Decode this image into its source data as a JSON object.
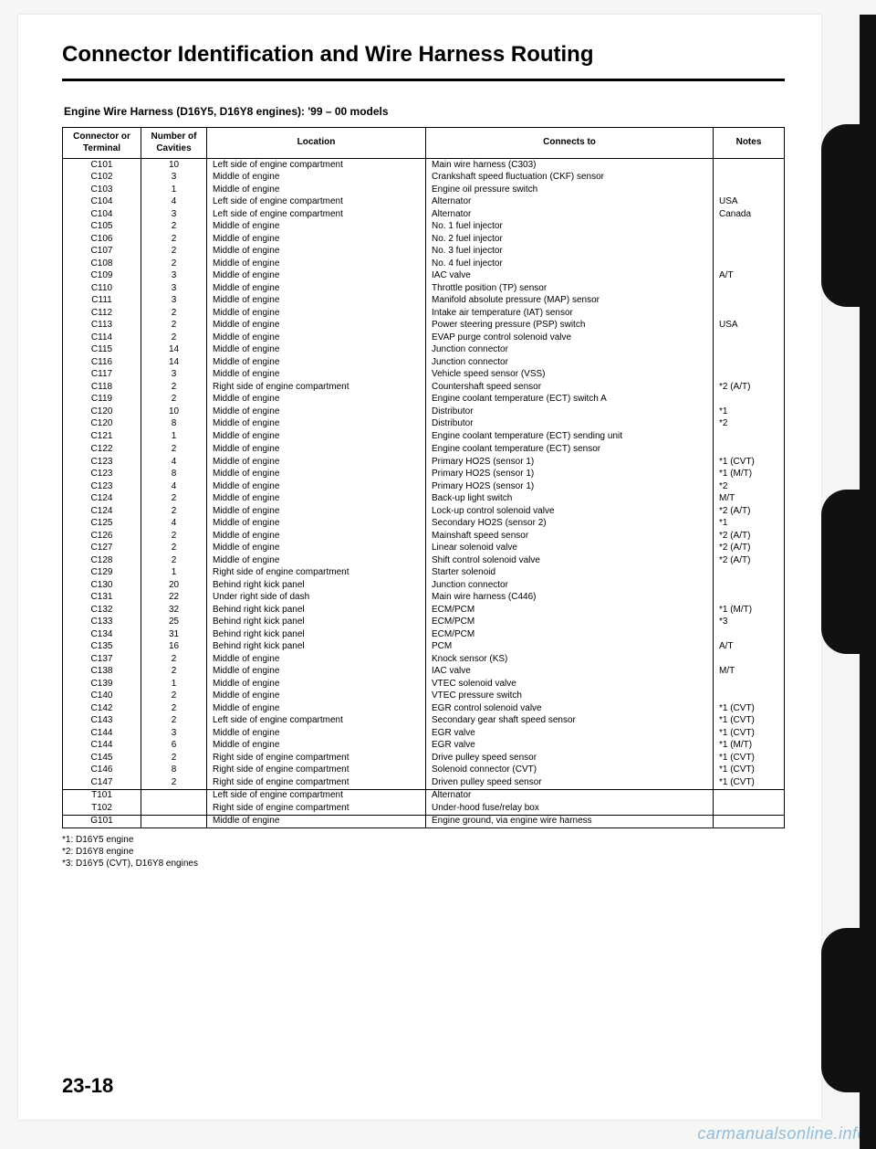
{
  "title": "Connector Identification and Wire Harness Routing",
  "subhead": "Engine Wire Harness (D16Y5, D16Y8 engines): '99 – 00 models",
  "headers": {
    "connector": "Connector or\nTerminal",
    "cavities": "Number of\nCavities",
    "location": "Location",
    "connects": "Connects to",
    "notes": "Notes"
  },
  "rows": [
    {
      "c": "C101",
      "n": "10",
      "loc": "Left side of engine compartment",
      "to": "Main wire harness (C303)",
      "note": ""
    },
    {
      "c": "C102",
      "n": "3",
      "loc": "Middle of engine",
      "to": "Crankshaft speed fluctuation (CKF) sensor",
      "note": ""
    },
    {
      "c": "C103",
      "n": "1",
      "loc": "Middle of engine",
      "to": "Engine oil pressure switch",
      "note": ""
    },
    {
      "c": "C104",
      "n": "4",
      "loc": "Left side of engine compartment",
      "to": "Alternator",
      "note": "USA"
    },
    {
      "c": "C104",
      "n": "3",
      "loc": "Left side of engine compartment",
      "to": "Alternator",
      "note": "Canada"
    },
    {
      "c": "C105",
      "n": "2",
      "loc": "Middle of engine",
      "to": "No. 1 fuel injector",
      "note": ""
    },
    {
      "c": "C106",
      "n": "2",
      "loc": "Middle of engine",
      "to": "No. 2 fuel injector",
      "note": ""
    },
    {
      "c": "C107",
      "n": "2",
      "loc": "Middle of engine",
      "to": "No. 3 fuel injector",
      "note": ""
    },
    {
      "c": "C108",
      "n": "2",
      "loc": "Middle of engine",
      "to": "No. 4 fuel injector",
      "note": ""
    },
    {
      "c": "C109",
      "n": "3",
      "loc": "Middle of engine",
      "to": "IAC valve",
      "note": "A/T"
    },
    {
      "c": "C110",
      "n": "3",
      "loc": "Middle of engine",
      "to": "Throttle position (TP) sensor",
      "note": ""
    },
    {
      "c": "C111",
      "n": "3",
      "loc": "Middle of engine",
      "to": "Manifold absolute pressure (MAP) sensor",
      "note": ""
    },
    {
      "c": "C112",
      "n": "2",
      "loc": "Middle of engine",
      "to": "Intake air temperature (IAT) sensor",
      "note": ""
    },
    {
      "c": "C113",
      "n": "2",
      "loc": "Middle of engine",
      "to": "Power steering pressure (PSP) switch",
      "note": "USA"
    },
    {
      "c": "C114",
      "n": "2",
      "loc": "Middle of engine",
      "to": "EVAP purge control solenoid valve",
      "note": ""
    },
    {
      "c": "C115",
      "n": "14",
      "loc": "Middle of engine",
      "to": "Junction connector",
      "note": ""
    },
    {
      "c": "C116",
      "n": "14",
      "loc": "Middle of engine",
      "to": "Junction connector",
      "note": ""
    },
    {
      "c": "C117",
      "n": "3",
      "loc": "Middle of engine",
      "to": "Vehicle speed sensor (VSS)",
      "note": ""
    },
    {
      "c": "C118",
      "n": "2",
      "loc": "Right side of engine compartment",
      "to": "Countershaft speed sensor",
      "note": "*2 (A/T)"
    },
    {
      "c": "C119",
      "n": "2",
      "loc": "Middle of engine",
      "to": "Engine coolant temperature (ECT) switch A",
      "note": ""
    },
    {
      "c": "C120",
      "n": "10",
      "loc": "Middle of engine",
      "to": "Distributor",
      "note": "*1"
    },
    {
      "c": "C120",
      "n": "8",
      "loc": "Middle of engine",
      "to": "Distributor",
      "note": "*2"
    },
    {
      "c": "C121",
      "n": "1",
      "loc": "Middle of engine",
      "to": "Engine coolant temperature (ECT) sending unit",
      "note": ""
    },
    {
      "c": "",
      "n": "",
      "loc": "",
      "to": "",
      "note": ""
    },
    {
      "c": "C122",
      "n": "2",
      "loc": "Middle of engine",
      "to": "Engine coolant temperature (ECT) sensor",
      "note": ""
    },
    {
      "c": "C123",
      "n": "4",
      "loc": "Middle of engine",
      "to": "Primary HO2S (sensor 1)",
      "note": "*1 (CVT)"
    },
    {
      "c": "C123",
      "n": "8",
      "loc": "Middle of engine",
      "to": "Primary HO2S (sensor 1)",
      "note": "*1 (M/T)"
    },
    {
      "c": "C123",
      "n": "4",
      "loc": "Middle of engine",
      "to": "Primary HO2S (sensor 1)",
      "note": "*2"
    },
    {
      "c": "C124",
      "n": "2",
      "loc": "Middle of engine",
      "to": "Back-up light switch",
      "note": "M/T"
    },
    {
      "c": "C124",
      "n": "2",
      "loc": "Middle of engine",
      "to": "Lock-up control solenoid valve",
      "note": "*2 (A/T)"
    },
    {
      "c": "C125",
      "n": "4",
      "loc": "Middle of engine",
      "to": "Secondary HO2S (sensor 2)",
      "note": "*1"
    },
    {
      "c": "C126",
      "n": "2",
      "loc": "Middle of engine",
      "to": "Mainshaft speed sensor",
      "note": "*2 (A/T)"
    },
    {
      "c": "C127",
      "n": "2",
      "loc": "Middle of engine",
      "to": "Linear solenoid valve",
      "note": "*2 (A/T)"
    },
    {
      "c": "C128",
      "n": "2",
      "loc": "Middle of engine",
      "to": "Shift control solenoid valve",
      "note": "*2 (A/T)"
    },
    {
      "c": "C129",
      "n": "1",
      "loc": "Right side of engine compartment",
      "to": "Starter solenoid",
      "note": ""
    },
    {
      "c": "C130",
      "n": "20",
      "loc": "Behind right kick panel",
      "to": "Junction connector",
      "note": ""
    },
    {
      "c": "C131",
      "n": "22",
      "loc": "Under right side of dash",
      "to": "Main wire harness (C446)",
      "note": ""
    },
    {
      "c": "C132",
      "n": "32",
      "loc": "Behind right kick panel",
      "to": "ECM/PCM",
      "note": "*1 (M/T)"
    },
    {
      "c": "C133",
      "n": "25",
      "loc": "Behind right kick panel",
      "to": "ECM/PCM",
      "note": "*3"
    },
    {
      "c": "C134",
      "n": "31",
      "loc": "Behind right kick panel",
      "to": "ECM/PCM",
      "note": ""
    },
    {
      "c": "C135",
      "n": "16",
      "loc": "Behind right kick panel",
      "to": "PCM",
      "note": "A/T"
    },
    {
      "c": "C137",
      "n": "2",
      "loc": "Middle of engine",
      "to": "Knock sensor (KS)",
      "note": ""
    },
    {
      "c": "C138",
      "n": "2",
      "loc": "Middle of engine",
      "to": "IAC valve",
      "note": "M/T"
    },
    {
      "c": "C139",
      "n": "1",
      "loc": "Middle of engine",
      "to": "VTEC solenoid valve",
      "note": ""
    },
    {
      "c": "C140",
      "n": "2",
      "loc": "Middle of engine",
      "to": "VTEC pressure switch",
      "note": ""
    },
    {
      "c": "C142",
      "n": "2",
      "loc": "Middle of engine",
      "to": "EGR control solenoid valve",
      "note": "*1 (CVT)"
    },
    {
      "c": "C143",
      "n": "2",
      "loc": "Left side of engine compartment",
      "to": "Secondary gear shaft speed sensor",
      "note": "*1 (CVT)"
    },
    {
      "c": "C144",
      "n": "3",
      "loc": "Middle of engine",
      "to": "EGR valve",
      "note": "*1 (CVT)"
    },
    {
      "c": "C144",
      "n": "6",
      "loc": "Middle of engine",
      "to": "EGR valve",
      "note": "*1 (M/T)"
    },
    {
      "c": "C145",
      "n": "2",
      "loc": "Right side of engine compartment",
      "to": "Drive pulley speed sensor",
      "note": "*1 (CVT)"
    },
    {
      "c": "C146",
      "n": "8",
      "loc": "Right side of engine compartment",
      "to": "Solenoid connector (CVT)",
      "note": "*1 (CVT)"
    },
    {
      "c": "C147",
      "n": "2",
      "loc": "Right side of engine compartment",
      "to": "Driven pulley speed sensor",
      "note": "*1 (CVT)"
    }
  ],
  "rows_t": [
    {
      "c": "T101",
      "n": "",
      "loc": "Left side of engine compartment",
      "to": "Alternator",
      "note": ""
    },
    {
      "c": "T102",
      "n": "",
      "loc": "Right side of engine compartment",
      "to": "Under-hood fuse/relay box",
      "note": ""
    }
  ],
  "rows_g": [
    {
      "c": "G101",
      "n": "",
      "loc": "Middle of engine",
      "to": "Engine ground, via engine wire harness",
      "note": ""
    }
  ],
  "footnotes": [
    "*1: D16Y5 engine",
    "*2: D16Y8 engine",
    "*3: D16Y5 (CVT), D16Y8 engines"
  ],
  "page_number": "23-18",
  "watermark": "carmanualsonline.info"
}
